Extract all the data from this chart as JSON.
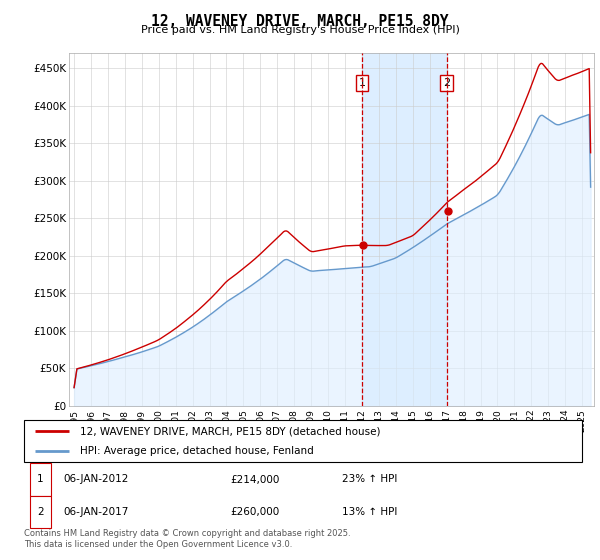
{
  "title": "12, WAVENEY DRIVE, MARCH, PE15 8DY",
  "subtitle": "Price paid vs. HM Land Registry's House Price Index (HPI)",
  "ylabel_ticks": [
    "£0",
    "£50K",
    "£100K",
    "£150K",
    "£200K",
    "£250K",
    "£300K",
    "£350K",
    "£400K",
    "£450K"
  ],
  "ytick_values": [
    0,
    50000,
    100000,
    150000,
    200000,
    250000,
    300000,
    350000,
    400000,
    450000
  ],
  "ylim": [
    0,
    470000
  ],
  "xlim_start": 1995.0,
  "xlim_end": 2025.5,
  "red_line_color": "#cc0000",
  "blue_line_color": "#6699cc",
  "blue_fill_color": "#ddeeff",
  "shaded_region_color": "#ddeeff",
  "shaded_region_start": 2012.0,
  "shaded_region_end": 2017.0,
  "vline1_x": 2012.0,
  "vline2_x": 2017.0,
  "marker1_x": 2012.05,
  "marker1_y": 214000,
  "marker2_x": 2017.05,
  "marker2_y": 260000,
  "legend_red": "12, WAVENEY DRIVE, MARCH, PE15 8DY (detached house)",
  "legend_blue": "HPI: Average price, detached house, Fenland",
  "table_row1": [
    "1",
    "06-JAN-2012",
    "£214,000",
    "23% ↑ HPI"
  ],
  "table_row2": [
    "2",
    "06-JAN-2017",
    "£260,000",
    "13% ↑ HPI"
  ],
  "footer": "Contains HM Land Registry data © Crown copyright and database right 2025.\nThis data is licensed under the Open Government Licence v3.0.",
  "background_color": "#ffffff",
  "grid_color": "#cccccc"
}
